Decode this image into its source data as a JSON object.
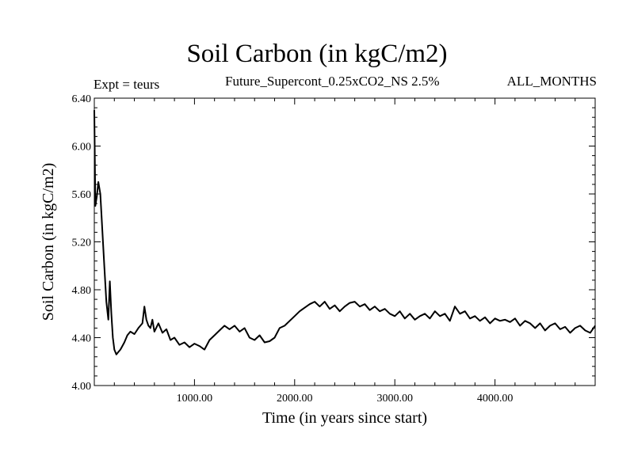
{
  "chart_data": {
    "type": "line",
    "title": "Soil Carbon (in kgC/m2)",
    "subtitle": "Future_Supercont_0.25xCO2_NS 2.5%",
    "left_note": "Expt = teurs",
    "right_note": "ALL_MONTHS",
    "xlabel": "Time (in years since start)",
    "ylabel": "Soil Carbon (in kgC/m2)",
    "xlim": [
      0,
      5000
    ],
    "ylim": [
      4.0,
      6.4
    ],
    "x_ticks": [
      1000,
      2000,
      3000,
      4000
    ],
    "x_tick_labels": [
      "1000.00",
      "2000.00",
      "3000.00",
      "4000.00"
    ],
    "y_ticks": [
      4.0,
      4.4,
      4.8,
      5.2,
      5.6,
      6.0,
      6.4
    ],
    "y_tick_labels": [
      "4.00",
      "4.40",
      "4.80",
      "5.20",
      "5.60",
      "6.00",
      "6.40"
    ],
    "grid": false,
    "series": [
      {
        "color": "#000000",
        "x": [
          0,
          10,
          25,
          40,
          60,
          80,
          100,
          120,
          140,
          155,
          170,
          185,
          200,
          220,
          240,
          260,
          280,
          300,
          330,
          360,
          400,
          440,
          480,
          500,
          520,
          540,
          560,
          580,
          600,
          640,
          680,
          720,
          760,
          800,
          850,
          900,
          950,
          1000,
          1050,
          1100,
          1150,
          1200,
          1250,
          1300,
          1350,
          1400,
          1450,
          1500,
          1550,
          1600,
          1650,
          1700,
          1750,
          1800,
          1850,
          1900,
          1950,
          2000,
          2050,
          2100,
          2150,
          2200,
          2250,
          2300,
          2350,
          2400,
          2450,
          2500,
          2550,
          2600,
          2650,
          2700,
          2750,
          2800,
          2850,
          2900,
          2950,
          3000,
          3050,
          3100,
          3150,
          3200,
          3250,
          3300,
          3350,
          3400,
          3450,
          3500,
          3550,
          3600,
          3650,
          3700,
          3750,
          3800,
          3850,
          3900,
          3950,
          4000,
          4050,
          4100,
          4150,
          4200,
          4250,
          4300,
          4350,
          4400,
          4450,
          4500,
          4550,
          4600,
          4650,
          4700,
          4750,
          4800,
          4850,
          4900,
          4950,
          5000
        ],
        "y": [
          6.3,
          5.5,
          5.58,
          5.7,
          5.6,
          5.3,
          5.0,
          4.7,
          4.55,
          4.87,
          4.6,
          4.4,
          4.3,
          4.26,
          4.28,
          4.3,
          4.33,
          4.36,
          4.42,
          4.45,
          4.43,
          4.48,
          4.52,
          4.66,
          4.55,
          4.5,
          4.48,
          4.55,
          4.45,
          4.52,
          4.44,
          4.47,
          4.38,
          4.4,
          4.34,
          4.36,
          4.32,
          4.35,
          4.33,
          4.3,
          4.38,
          4.42,
          4.46,
          4.5,
          4.47,
          4.5,
          4.45,
          4.48,
          4.4,
          4.38,
          4.42,
          4.36,
          4.37,
          4.4,
          4.48,
          4.5,
          4.54,
          4.58,
          4.62,
          4.65,
          4.68,
          4.7,
          4.66,
          4.7,
          4.64,
          4.67,
          4.62,
          4.66,
          4.69,
          4.7,
          4.66,
          4.68,
          4.63,
          4.66,
          4.62,
          4.64,
          4.6,
          4.58,
          4.62,
          4.56,
          4.6,
          4.55,
          4.58,
          4.6,
          4.56,
          4.62,
          4.58,
          4.6,
          4.54,
          4.66,
          4.6,
          4.62,
          4.56,
          4.58,
          4.54,
          4.57,
          4.52,
          4.56,
          4.54,
          4.55,
          4.53,
          4.56,
          4.5,
          4.54,
          4.52,
          4.48,
          4.52,
          4.46,
          4.5,
          4.52,
          4.47,
          4.49,
          4.44,
          4.48,
          4.5,
          4.46,
          4.44,
          4.5
        ]
      }
    ]
  }
}
